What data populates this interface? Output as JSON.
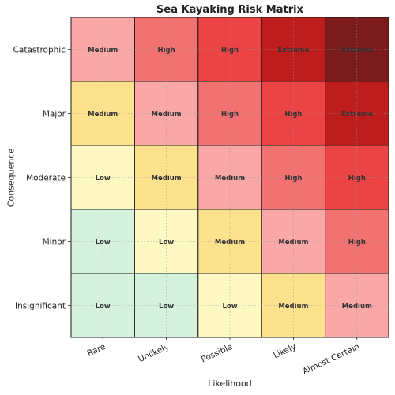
{
  "chart_data": {
    "type": "heatmap",
    "title": "Sea Kayaking Risk Matrix",
    "xlabel": "Likelihood",
    "ylabel": "Consequence",
    "x_categories": [
      "Rare",
      "Unlikely",
      "Possible",
      "Likely",
      "Almost Certain"
    ],
    "y_categories": [
      "Catastrophic",
      "Major",
      "Moderate",
      "Minor",
      "Insignificant"
    ],
    "cells": [
      [
        "Medium",
        "High",
        "High",
        "Extreme",
        "Extreme"
      ],
      [
        "Medium",
        "Medium",
        "High",
        "High",
        "Extreme"
      ],
      [
        "Low",
        "Medium",
        "Medium",
        "High",
        "High"
      ],
      [
        "Low",
        "Low",
        "Medium",
        "Medium",
        "High"
      ],
      [
        "Low",
        "Low",
        "Low",
        "Medium",
        "Medium"
      ]
    ],
    "cell_colors": [
      [
        "#f9a7a7",
        "#f27272",
        "#ec4444",
        "#bd1d1d",
        "#7b1b1b"
      ],
      [
        "#fde28e",
        "#f9a7a7",
        "#f27272",
        "#ec4444",
        "#bd1d1d"
      ],
      [
        "#fef8c3",
        "#fde28e",
        "#f9a7a7",
        "#f27272",
        "#ec4444"
      ],
      [
        "#d5f2dc",
        "#fef8c3",
        "#fde28e",
        "#f9a7a7",
        "#f27272"
      ],
      [
        "#d5f2dc",
        "#d5f2dc",
        "#fef8c3",
        "#fde28e",
        "#f9a7a7"
      ]
    ],
    "grid": true,
    "legend": "none"
  }
}
